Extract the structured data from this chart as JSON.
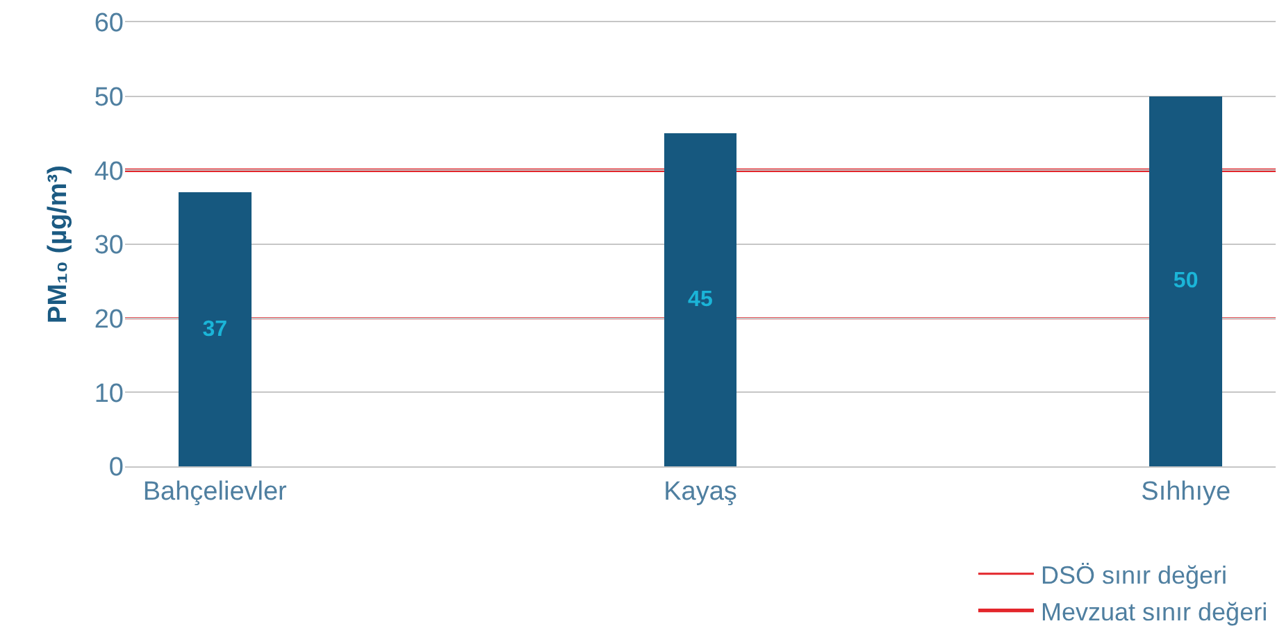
{
  "chart_data": {
    "type": "bar",
    "ylabel": "PM₁₀ (µg/m³)",
    "categories": [
      "Bahçelievler",
      "Kayaş",
      "Sıhhıye"
    ],
    "values": [
      37,
      45,
      50
    ],
    "color": "#16587f",
    "data_labels": true,
    "ylim": [
      0,
      60
    ],
    "yticks": [
      0,
      10,
      20,
      30,
      40,
      50,
      60
    ],
    "grid": "y",
    "legend": "bottom right",
    "ref_lines": [
      {
        "axis": "y",
        "value": 20,
        "label": "DSÖ sınır değeri",
        "color": "#e3262b"
      },
      {
        "axis": "y",
        "value": 40,
        "label": "Mevzuat sınır değeri",
        "color": "#e3262b"
      }
    ]
  }
}
